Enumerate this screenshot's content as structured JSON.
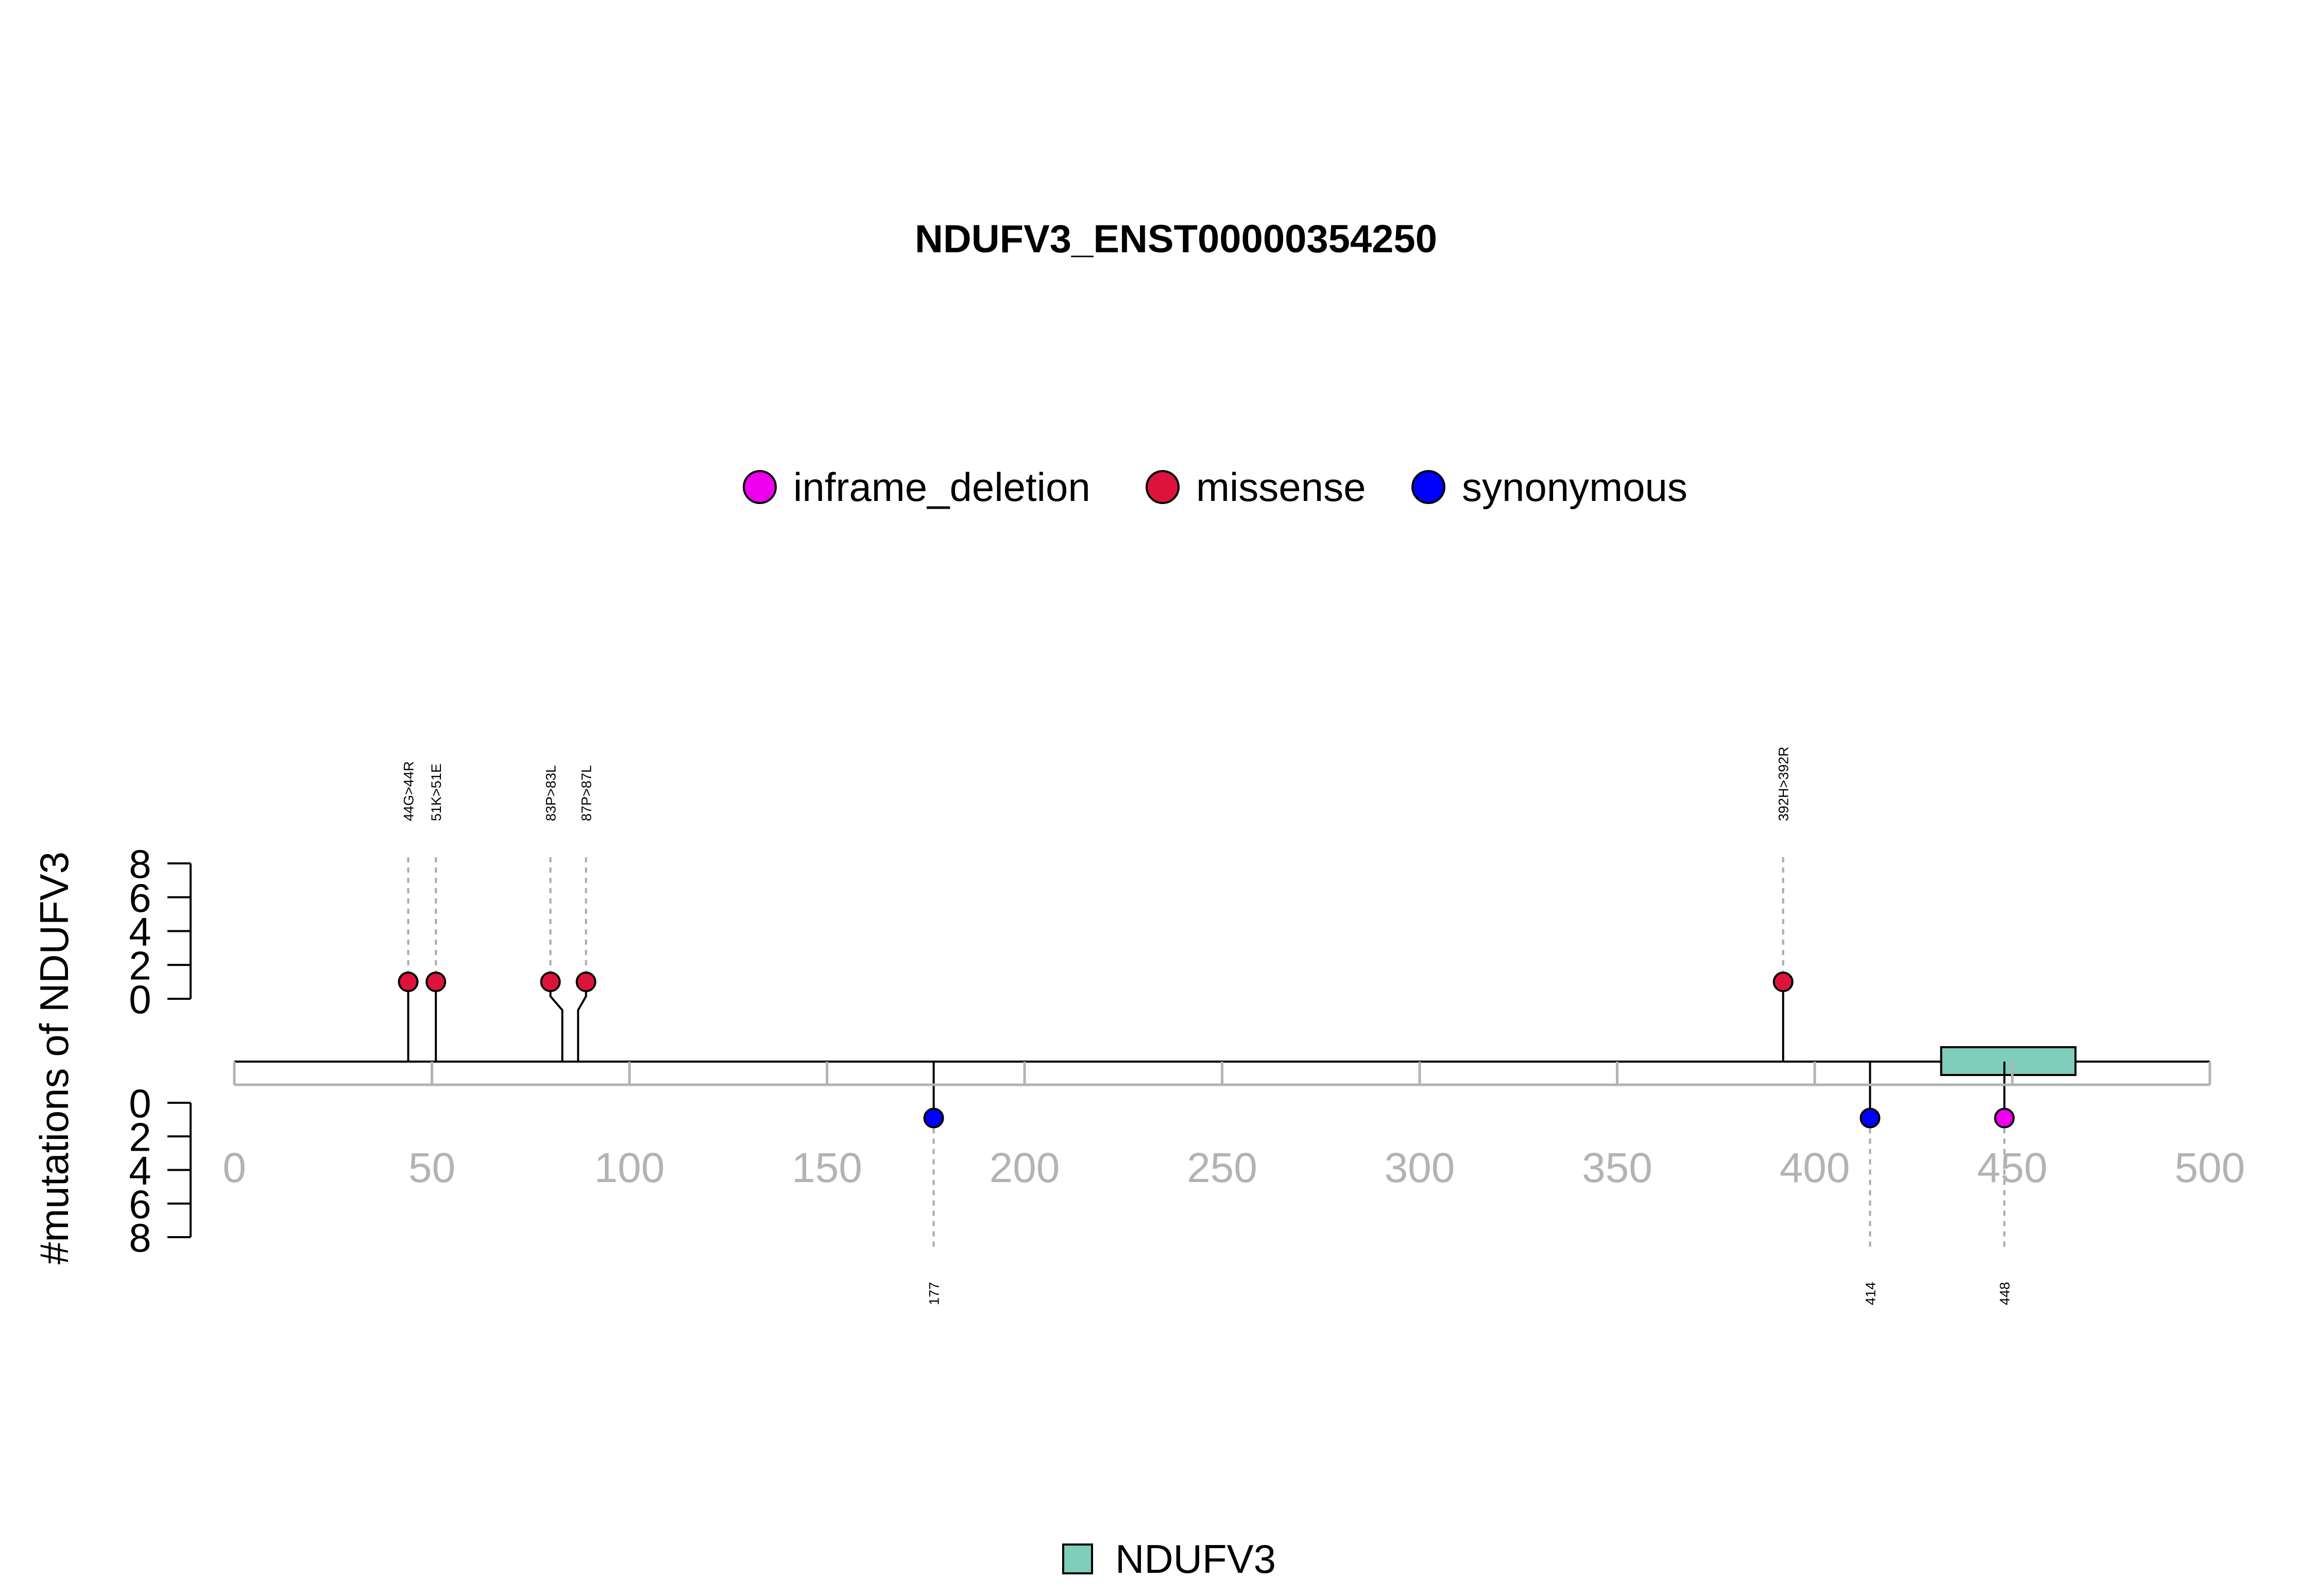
{
  "chart_data": {
    "type": "lollipop",
    "title": "NDUFV3_ENST00000354250",
    "ylabel": "#mutations of NDUFV3",
    "xlim": [
      0,
      500
    ],
    "x_ticks": [
      0,
      50,
      100,
      150,
      200,
      250,
      300,
      350,
      400,
      450,
      500
    ],
    "y_ticks": [
      0,
      2,
      4,
      6,
      8
    ],
    "legend": [
      {
        "name": "inframe_deletion",
        "color": "#ee00ee"
      },
      {
        "name": "missense",
        "color": "#dc143c"
      },
      {
        "name": "synonymous",
        "color": "#0000ff"
      }
    ],
    "mutations_top": [
      {
        "position": 44,
        "count": 1,
        "type": "missense",
        "label": "44G>44R"
      },
      {
        "position": 51,
        "count": 1,
        "type": "missense",
        "label": "51K>51E"
      },
      {
        "position": 83,
        "count": 1,
        "type": "missense",
        "label": "83P>83L"
      },
      {
        "position": 87,
        "count": 1,
        "type": "missense",
        "label": "87P>87L"
      },
      {
        "position": 392,
        "count": 1,
        "type": "missense",
        "label": "392H>392R"
      }
    ],
    "mutations_bottom": [
      {
        "position": 177,
        "count": 1,
        "type": "synonymous",
        "label": "177"
      },
      {
        "position": 414,
        "count": 1,
        "type": "synonymous",
        "label": "414"
      },
      {
        "position": 448,
        "count": 1,
        "type": "inframe_deletion",
        "label": "448"
      }
    ],
    "domains": [
      {
        "name": "NDUFV3",
        "start": 432,
        "end": 466,
        "color": "#7fcdbb"
      }
    ]
  }
}
